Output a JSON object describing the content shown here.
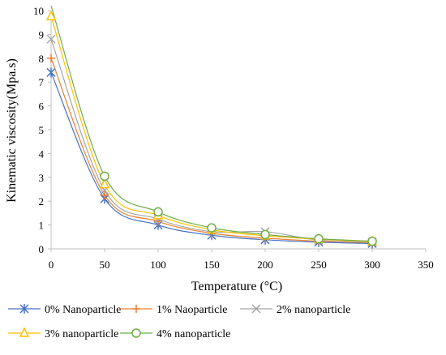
{
  "chart_data": {
    "type": "line",
    "title": "",
    "xlabel": "Temperature (°C)",
    "ylabel": "Kinematic viscosity(Mpa.s)",
    "xlim": [
      0,
      350
    ],
    "ylim": [
      0,
      10
    ],
    "xticks": [
      0,
      50,
      100,
      150,
      200,
      250,
      300,
      350
    ],
    "yticks": [
      0,
      1,
      2,
      3,
      4,
      5,
      6,
      7,
      8,
      9,
      10
    ],
    "grid": false,
    "legend_position": "bottom",
    "smooth": true,
    "x": [
      0,
      50,
      100,
      150,
      200,
      250,
      300
    ],
    "series": [
      {
        "name": "0% Nanoparticle",
        "color": "#4472C4",
        "marker": "asterisk",
        "values": [
          7.4,
          2.1,
          1.0,
          0.57,
          0.38,
          0.28,
          0.22
        ]
      },
      {
        "name": "1% Naoparticle",
        "color": "#ED7D31",
        "marker": "plus",
        "values": [
          8.0,
          2.25,
          1.15,
          0.65,
          0.45,
          0.32,
          0.26
        ]
      },
      {
        "name": "2% nanoparticle",
        "color": "#A5A5A5",
        "marker": "cross",
        "values": [
          8.8,
          2.45,
          1.25,
          0.72,
          0.72,
          0.36,
          0.28
        ]
      },
      {
        "name": "3% nanoparticle",
        "color": "#FFC000",
        "marker": "triangle",
        "values": [
          9.75,
          2.7,
          1.4,
          0.8,
          0.55,
          0.4,
          0.3
        ]
      },
      {
        "name": "4% nanoparticle",
        "color": "#70AD47",
        "marker": "circle",
        "values": [
          10.2,
          3.05,
          1.55,
          0.88,
          0.6,
          0.42,
          0.32
        ]
      }
    ]
  }
}
